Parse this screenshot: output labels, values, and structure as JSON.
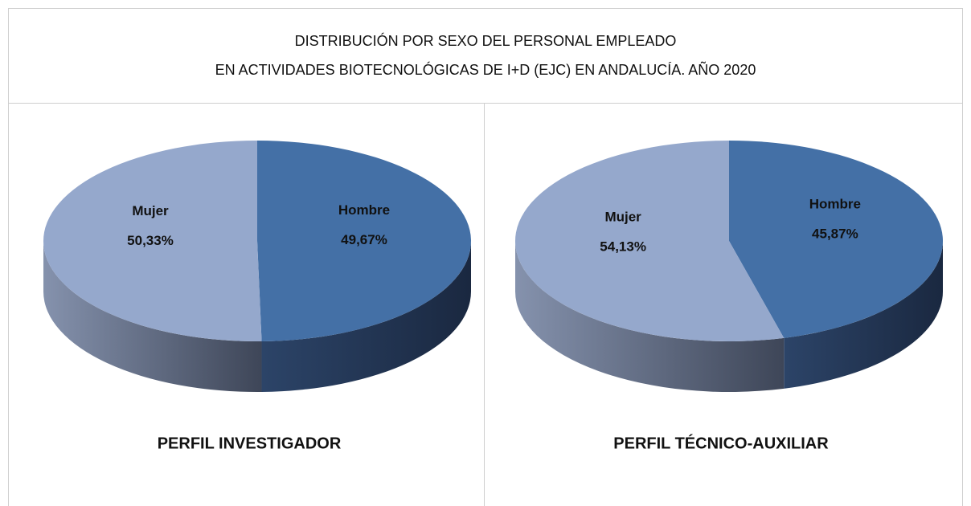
{
  "title": {
    "line1": "DISTRIBUCIÓN POR SEXO DEL PERSONAL EMPLEADO",
    "line2": "EN ACTIVIDADES BIOTECNOLÓGICAS DE I+D (EJC) EN ANDALUCÍA. AÑO 2020"
  },
  "chart_data": [
    {
      "type": "pie",
      "title": "PERFIL INVESTIGADOR",
      "categories": [
        "Hombre",
        "Mujer"
      ],
      "values": [
        49.67,
        50.33
      ],
      "value_labels": [
        "49,67%",
        "50,33%"
      ],
      "colors": [
        "#4470a6",
        "#95a8cc"
      ]
    },
    {
      "type": "pie",
      "title": "PERFIL TÉCNICO-AUXILIAR",
      "categories": [
        "Hombre",
        "Mujer"
      ],
      "values": [
        45.87,
        54.13
      ],
      "value_labels": [
        "45,87%",
        "54,13%"
      ],
      "colors": [
        "#4470a6",
        "#95a8cc"
      ]
    }
  ]
}
